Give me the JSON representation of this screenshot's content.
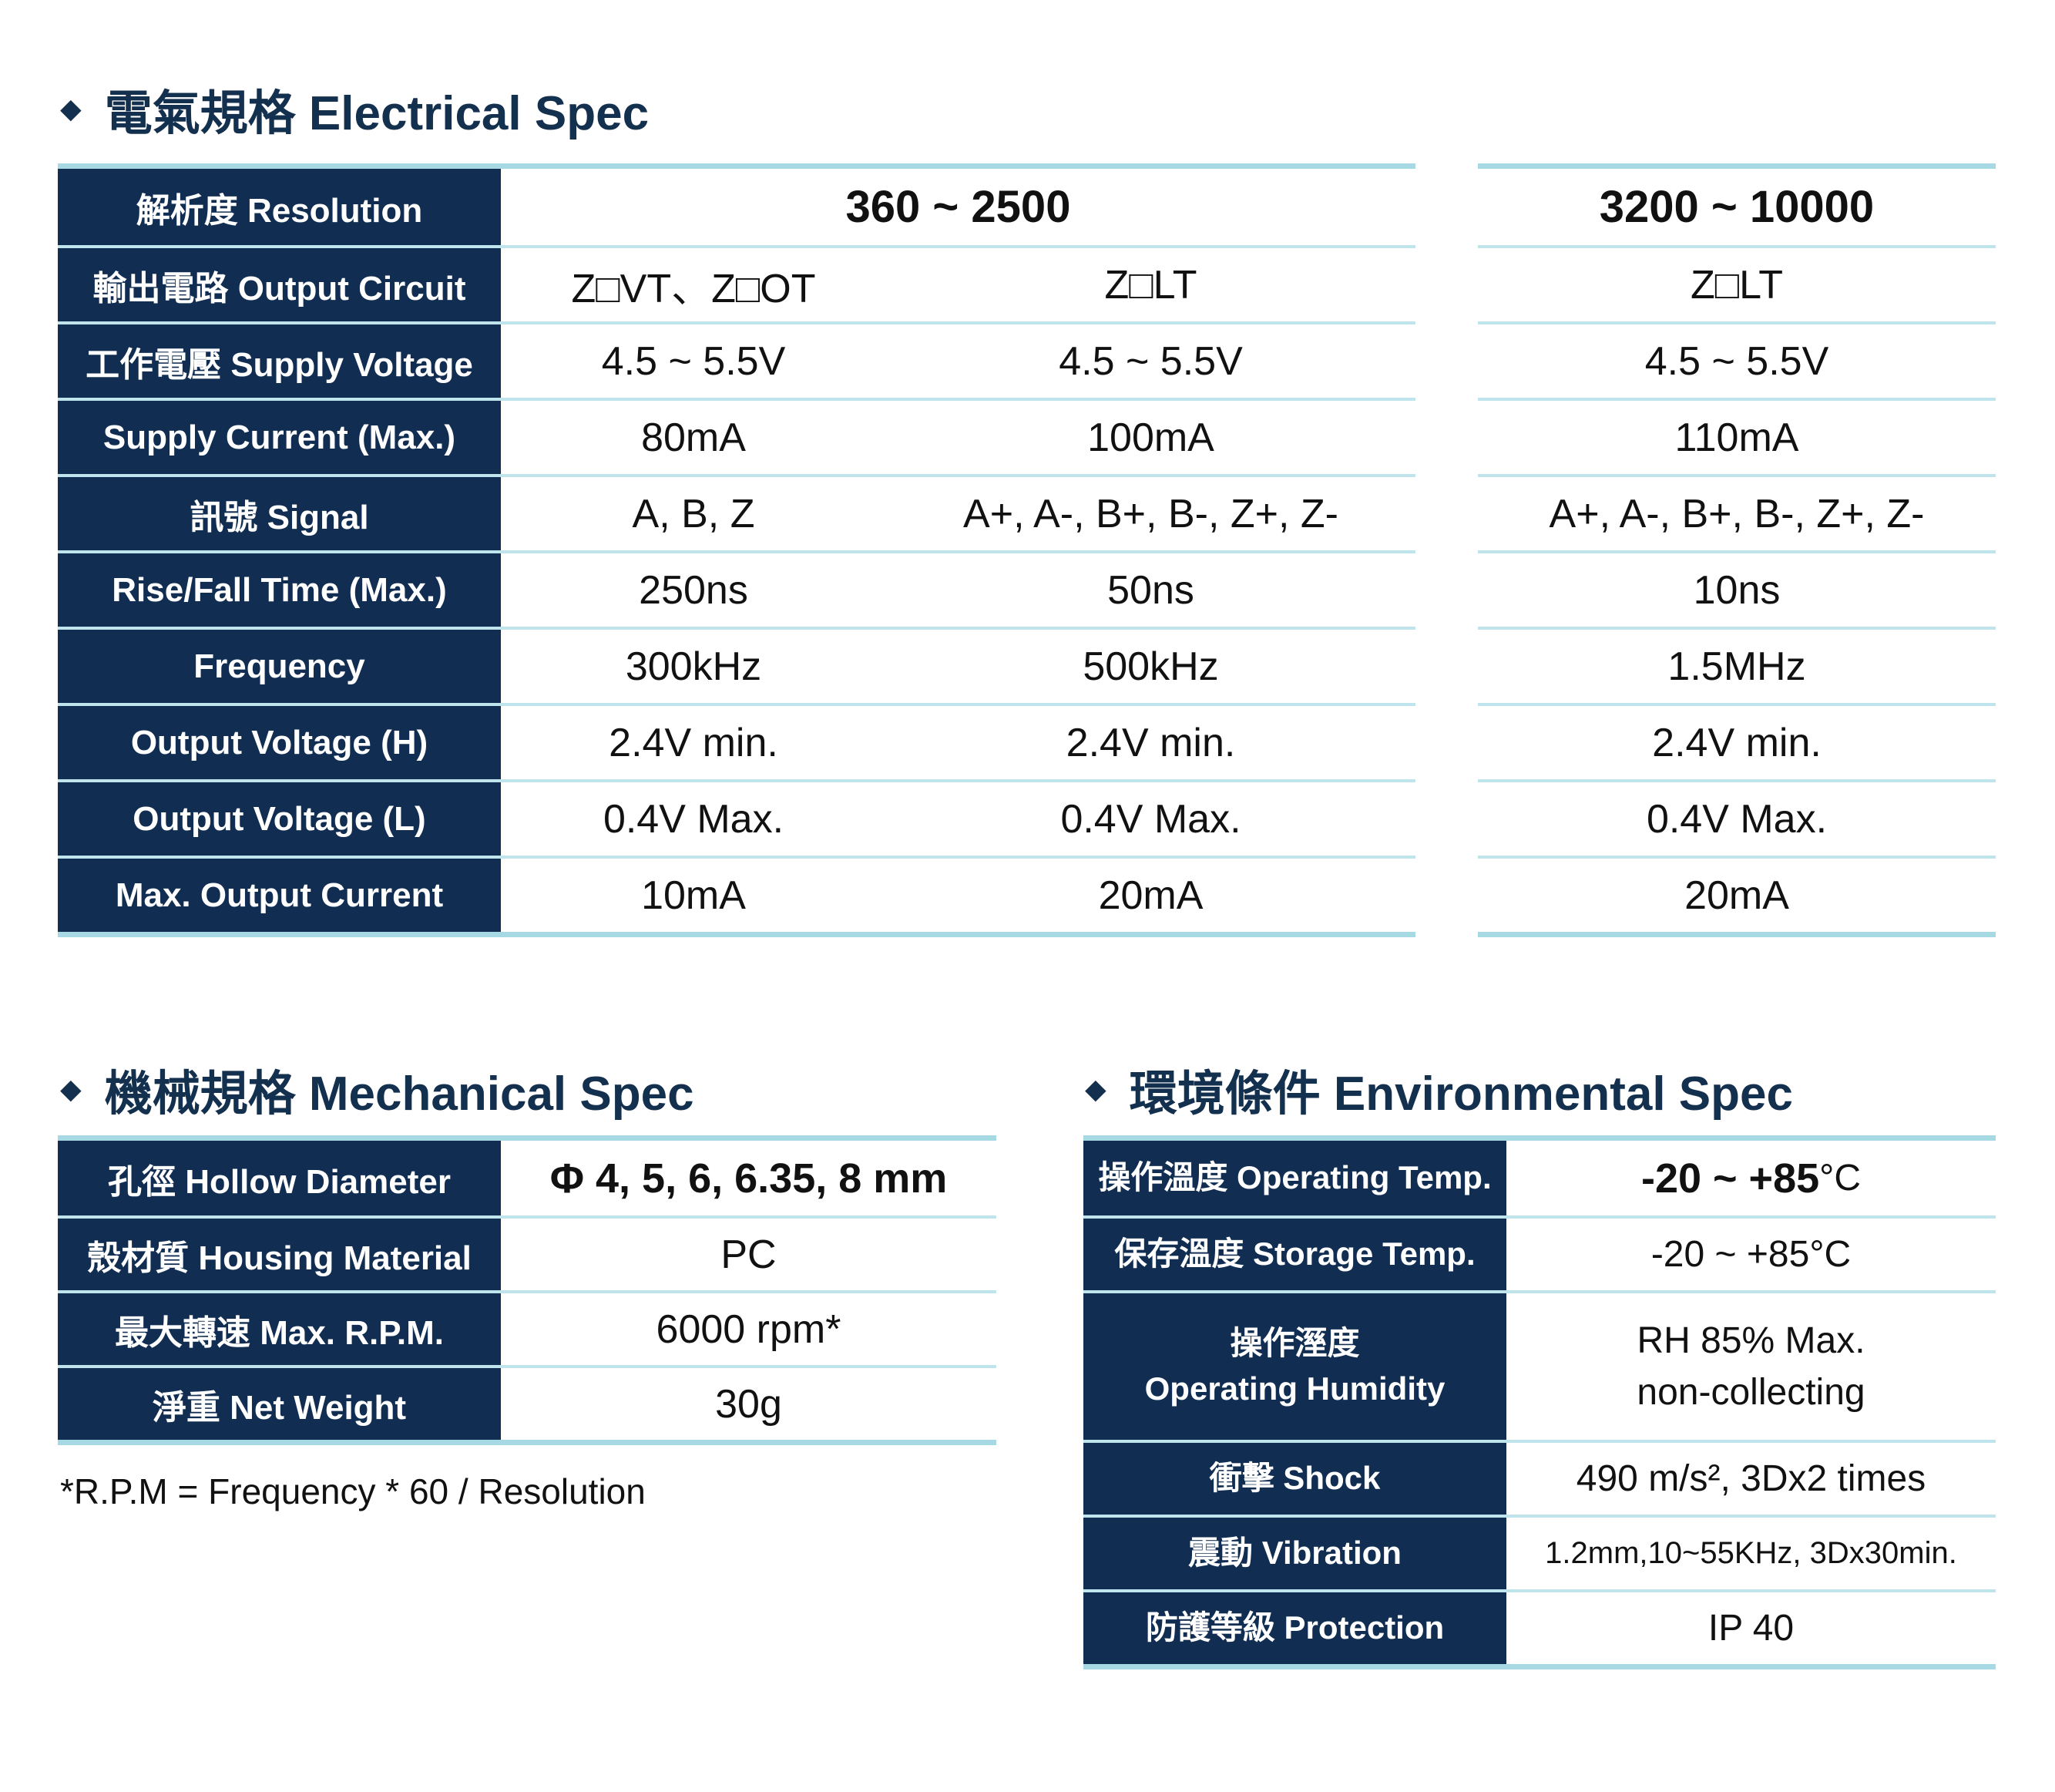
{
  "colors": {
    "navy_header": "#112e52",
    "title_text": "#14304f",
    "row_divider": "#bfe4ec",
    "table_edge": "#a6d9e4",
    "value_text": "#111111"
  },
  "electrical": {
    "bullet": "◆",
    "title": "電氣規格 Electrical Spec",
    "rows": [
      {
        "label": "解析度 Resolution",
        "col1": "360 ~ 2500",
        "col2": "",
        "right": "3200 ~ 10000"
      },
      {
        "label": "輸出電路 Output Circuit",
        "col1": "Z□VT、Z□OT",
        "col2": "Z□LT",
        "right": "Z□LT"
      },
      {
        "label": "工作電壓 Supply Voltage",
        "col1": "4.5 ~ 5.5V",
        "col2": "4.5 ~ 5.5V",
        "right": "4.5 ~ 5.5V"
      },
      {
        "label": "Supply Current (Max.)",
        "col1": "80mA",
        "col2": "100mA",
        "right": "110mA"
      },
      {
        "label": "訊號 Signal",
        "col1": "A, B, Z",
        "col2": "A+, A-, B+, B-, Z+, Z-",
        "right": "A+, A-, B+, B-, Z+, Z-"
      },
      {
        "label": "Rise/Fall Time (Max.)",
        "col1": "250ns",
        "col2": "50ns",
        "right": "10ns"
      },
      {
        "label": "Frequency",
        "col1": "300kHz",
        "col2": "500kHz",
        "right": "1.5MHz"
      },
      {
        "label": "Output Voltage (H)",
        "col1": "2.4V min.",
        "col2": "2.4V min.",
        "right": "2.4V min."
      },
      {
        "label": "Output Voltage (L)",
        "col1": "0.4V Max.",
        "col2": "0.4V Max.",
        "right": "0.4V Max."
      },
      {
        "label": "Max. Output Current",
        "col1": "10mA",
        "col2": "20mA",
        "right": "20mA"
      }
    ]
  },
  "mechanical": {
    "bullet": "◆",
    "title": "機械規格 Mechanical Spec",
    "rows": [
      {
        "label": "孔徑 Hollow Diameter",
        "value": "Φ 4, 5, 6, 6.35, 8 mm"
      },
      {
        "label": "殼材質 Housing Material",
        "value": "PC"
      },
      {
        "label": "最大轉速 Max. R.P.M.",
        "value": "6000 rpm*"
      },
      {
        "label": "淨重 Net Weight",
        "value": "30g"
      }
    ],
    "footnote": "*R.P.M = Frequency * 60 / Resolution"
  },
  "environmental": {
    "bullet": "◆",
    "title": "環境條件 Environmental Spec",
    "rows": [
      {
        "label": "操作溫度 Operating Temp.",
        "value_bold": "-20 ~ +85",
        "value_suffix": "°C"
      },
      {
        "label": "保存溫度 Storage Temp.",
        "value": "-20 ~ +85°C"
      },
      {
        "label_line1": "操作溼度",
        "label_line2": "Operating Humidity",
        "value_line1": "RH 85% Max.",
        "value_line2": "non-collecting"
      },
      {
        "label": "衝擊 Shock",
        "value": "490 m/s², 3Dx2 times"
      },
      {
        "label": "震動 Vibration",
        "value": "1.2mm,10~55KHz, 3Dx30min."
      },
      {
        "label": "防護等級 Protection",
        "value": "IP 40"
      }
    ]
  }
}
